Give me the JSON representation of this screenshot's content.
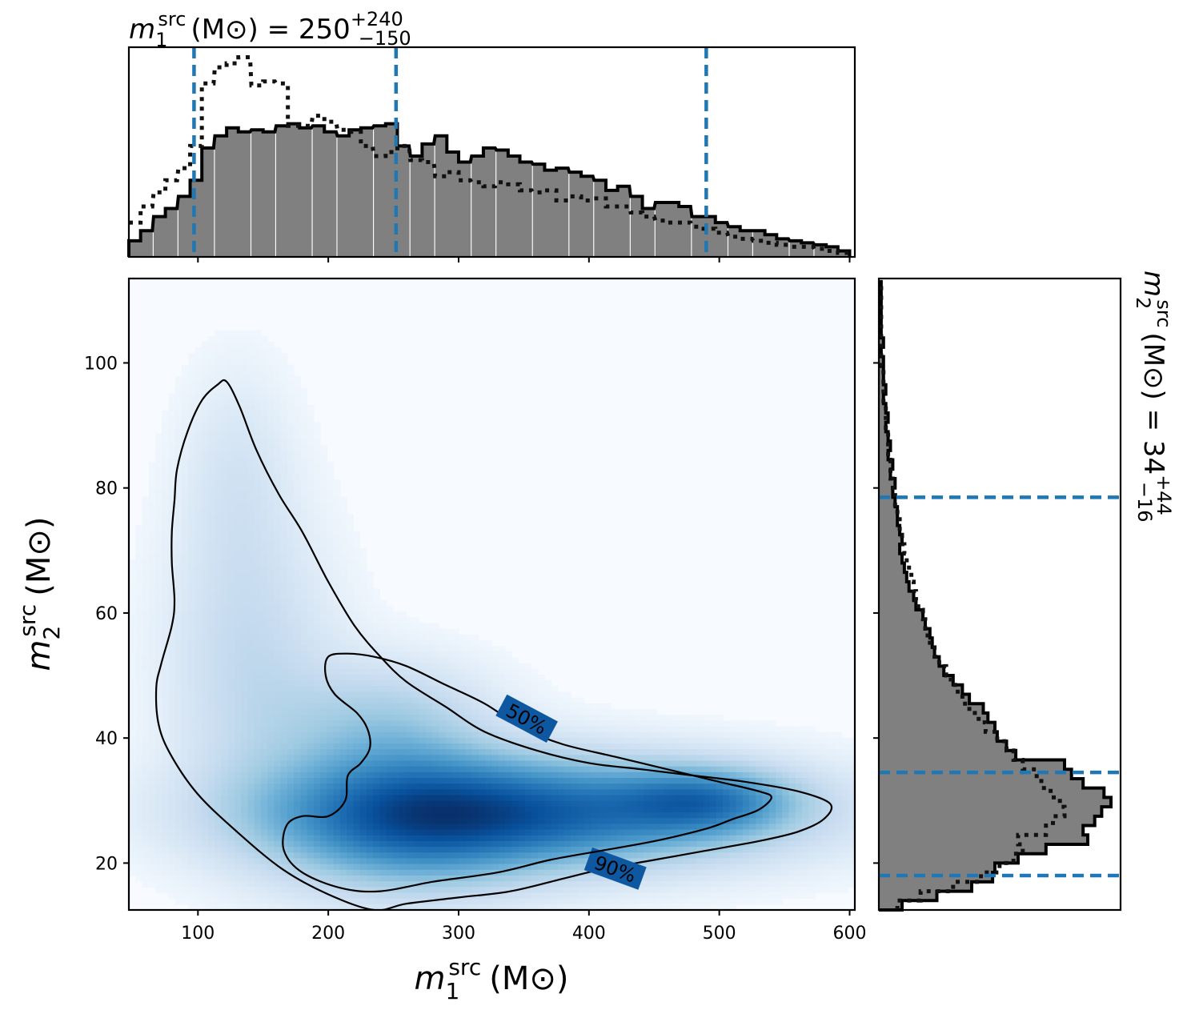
{
  "chart_data": {
    "type": "corner-plot",
    "colors": {
      "histogram_fill": "#808080",
      "dashed_line": "#1f77b4",
      "density_cmap_dark": "#08306b",
      "density_cmap_light": "#f7fbff"
    },
    "top_marginal": {
      "title_symbol": "m",
      "title_sub": "1",
      "title_sup": "src",
      "title_unit": "(M⊙)",
      "title_eq": " = 250",
      "title_upper": "+240",
      "title_lower": "−150",
      "xlim": [
        47,
        604
      ],
      "dashed_lines_x": [
        97,
        252,
        490
      ],
      "bins_left": [
        47,
        56,
        66,
        75,
        85,
        94,
        103,
        113,
        122,
        131,
        141,
        150,
        160,
        169,
        178,
        188,
        197,
        207,
        216,
        225,
        235,
        244,
        253,
        263,
        272,
        282,
        291,
        300,
        310,
        319,
        329,
        338,
        347,
        357,
        366,
        375,
        385,
        394,
        404,
        413,
        422,
        432,
        441,
        451,
        460,
        469,
        479,
        488,
        497,
        507,
        516,
        526,
        535,
        544,
        554,
        563,
        573,
        582,
        591
      ],
      "posterior": [
        0.08,
        0.13,
        0.2,
        0.24,
        0.3,
        0.38,
        0.54,
        0.6,
        0.64,
        0.62,
        0.63,
        0.62,
        0.65,
        0.66,
        0.64,
        0.65,
        0.62,
        0.6,
        0.63,
        0.64,
        0.65,
        0.66,
        0.55,
        0.5,
        0.56,
        0.6,
        0.52,
        0.47,
        0.5,
        0.54,
        0.53,
        0.5,
        0.47,
        0.46,
        0.43,
        0.44,
        0.42,
        0.4,
        0.38,
        0.33,
        0.35,
        0.3,
        0.24,
        0.27,
        0.27,
        0.25,
        0.2,
        0.2,
        0.17,
        0.15,
        0.13,
        0.13,
        0.11,
        0.09,
        0.08,
        0.07,
        0.06,
        0.05,
        0.03
      ],
      "prior": [
        0.17,
        0.25,
        0.32,
        0.38,
        0.44,
        0.55,
        0.86,
        0.94,
        0.96,
        0.99,
        0.85,
        0.87,
        0.86,
        0.65,
        0.65,
        0.7,
        0.67,
        0.63,
        0.62,
        0.55,
        0.5,
        0.52,
        0.55,
        0.48,
        0.47,
        0.4,
        0.42,
        0.38,
        0.37,
        0.35,
        0.37,
        0.36,
        0.33,
        0.32,
        0.33,
        0.28,
        0.3,
        0.28,
        0.29,
        0.25,
        0.25,
        0.22,
        0.2,
        0.18,
        0.17,
        0.17,
        0.15,
        0.14,
        0.12,
        0.1,
        0.09,
        0.08,
        0.07,
        0.06,
        0.05,
        0.05,
        0.04,
        0.03,
        0.02
      ],
      "xticks": [
        100,
        200,
        300,
        400,
        500,
        600
      ]
    },
    "right_marginal": {
      "title_symbol": "m",
      "title_sub": "2",
      "title_sup": "src",
      "title_unit": "(M⊙)",
      "title_eq": " = 34",
      "title_upper": "+44",
      "title_lower": "−16",
      "ylim": [
        12.5,
        113.5
      ],
      "dashed_lines_y": [
        78.5,
        34.5,
        18
      ],
      "bins_low": [
        12.5,
        14,
        15.5,
        17,
        18.5,
        20,
        21.5,
        23,
        24.5,
        26,
        27.5,
        29,
        30.5,
        32,
        33.5,
        35,
        36.5,
        38,
        39.5,
        41,
        42.5,
        44,
        45.5,
        47,
        48.5,
        50,
        51.5,
        53,
        54.5,
        56,
        57.5,
        59,
        60.5,
        62,
        63.5,
        65,
        66.5,
        68,
        69.5,
        71,
        72.5,
        74,
        75.5,
        77,
        78.5,
        80,
        81.5,
        83,
        84.5,
        86,
        87.5,
        89,
        90.5,
        92,
        93.5,
        95,
        96.5,
        98,
        99.5,
        101,
        102.5,
        104,
        105.5,
        107,
        108.5,
        110,
        111.5
      ],
      "posterior": [
        0.1,
        0.25,
        0.4,
        0.49,
        0.5,
        0.6,
        0.72,
        0.9,
        0.88,
        0.93,
        0.96,
        1.0,
        0.97,
        0.88,
        0.83,
        0.8,
        0.59,
        0.55,
        0.51,
        0.5,
        0.47,
        0.45,
        0.39,
        0.36,
        0.32,
        0.28,
        0.26,
        0.24,
        0.23,
        0.22,
        0.2,
        0.19,
        0.16,
        0.15,
        0.13,
        0.12,
        0.11,
        0.1,
        0.09,
        0.1,
        0.09,
        0.08,
        0.08,
        0.07,
        0.06,
        0.07,
        0.05,
        0.06,
        0.04,
        0.05,
        0.04,
        0.03,
        0.04,
        0.03,
        0.02,
        0.03,
        0.02,
        0.02,
        0.02,
        0.01,
        0.02,
        0.01,
        0.01,
        0.01,
        0.01,
        0.01,
        0.01
      ],
      "prior": [
        0.08,
        0.18,
        0.32,
        0.44,
        0.52,
        0.58,
        0.62,
        0.6,
        0.72,
        0.75,
        0.8,
        0.78,
        0.74,
        0.7,
        0.68,
        0.62,
        0.58,
        0.55,
        0.51,
        0.46,
        0.43,
        0.39,
        0.36,
        0.34,
        0.31,
        0.29,
        0.26,
        0.24,
        0.22,
        0.21,
        0.2,
        0.19,
        0.17,
        0.16,
        0.15,
        0.14,
        0.13,
        0.12,
        0.11,
        0.1,
        0.09,
        0.09,
        0.08,
        0.07,
        0.07,
        0.06,
        0.05,
        0.05,
        0.04,
        0.04,
        0.04,
        0.03,
        0.03,
        0.03,
        0.02,
        0.02,
        0.02,
        0.02,
        0.01,
        0.01,
        0.01,
        0.01,
        0.01,
        0.01,
        0.01,
        0.01,
        0.01
      ],
      "yticks": [
        20,
        40,
        60,
        80,
        100
      ]
    },
    "joint": {
      "type": "heatmap",
      "xlim": [
        47,
        604
      ],
      "ylim": [
        12.5,
        113.5
      ],
      "xticks": [
        100,
        200,
        300,
        400,
        500,
        600
      ],
      "yticks": [
        20,
        40,
        60,
        80,
        100
      ],
      "xlabel_symbol": "m",
      "xlabel_sub": "1",
      "xlabel_sup": "src",
      "xlabel_unit": "(M⊙)",
      "ylabel_symbol": "m",
      "ylabel_sub": "2",
      "ylabel_sup": "src",
      "ylabel_unit": "(M⊙)",
      "density_modes": [
        {
          "x": 355,
          "y": 28,
          "sx": 130,
          "sy": 6,
          "w": 1.0
        },
        {
          "x": 490,
          "y": 30,
          "sx": 45,
          "sy": 3.5,
          "w": 0.55
        },
        {
          "x": 260,
          "y": 26,
          "sx": 70,
          "sy": 8,
          "w": 0.55
        },
        {
          "x": 245,
          "y": 42,
          "sx": 55,
          "sy": 7,
          "w": 0.35
        },
        {
          "x": 140,
          "y": 52,
          "sx": 45,
          "sy": 16,
          "w": 0.25
        },
        {
          "x": 130,
          "y": 82,
          "sx": 30,
          "sy": 12,
          "w": 0.14
        }
      ],
      "contours": [
        {
          "label": "90%",
          "label_x": 420,
          "label_y": 19,
          "label_angle": 20,
          "points": [
            [
              122,
              97
            ],
            [
              132,
              93
            ],
            [
              145,
              86
            ],
            [
              162,
              79
            ],
            [
              180,
              73
            ],
            [
              200,
              65
            ],
            [
              220,
              58
            ],
            [
              240,
              53
            ],
            [
              260,
              49
            ],
            [
              290,
              45
            ],
            [
              320,
              41
            ],
            [
              360,
              38
            ],
            [
              400,
              36
            ],
            [
              440,
              35
            ],
            [
              480,
              34
            ],
            [
              520,
              33
            ],
            [
              560,
              31.5
            ],
            [
              585,
              29.5
            ],
            [
              580,
              27
            ],
            [
              560,
              25
            ],
            [
              530,
              23.5
            ],
            [
              490,
              22
            ],
            [
              450,
              20.5
            ],
            [
              410,
              19
            ],
            [
              380,
              17.5
            ],
            [
              340,
              15.5
            ],
            [
              300,
              14.5
            ],
            [
              260,
              13.5
            ],
            [
              235,
              12.5
            ],
            [
              200,
              15
            ],
            [
              165,
              19
            ],
            [
              130,
              25
            ],
            [
              100,
              31
            ],
            [
              80,
              37
            ],
            [
              70,
              42
            ],
            [
              68,
              48
            ],
            [
              72,
              52
            ],
            [
              80,
              58
            ],
            [
              82,
              62
            ],
            [
              80,
              68
            ],
            [
              80,
              73
            ],
            [
              82,
              78
            ],
            [
              84,
              83
            ],
            [
              92,
              89
            ],
            [
              103,
              94
            ],
            [
              115,
              96.5
            ]
          ]
        },
        {
          "label": "50%",
          "label_x": 352,
          "label_y": 43,
          "label_angle": 28,
          "points": [
            [
              200,
              53
            ],
            [
              215,
              53.5
            ],
            [
              235,
              53
            ],
            [
              260,
              51.5
            ],
            [
              290,
              48.5
            ],
            [
              320,
              45.5
            ],
            [
              350,
              41.5
            ],
            [
              380,
              39
            ],
            [
              420,
              37
            ],
            [
              460,
              35
            ],
            [
              500,
              33
            ],
            [
              530,
              31.5
            ],
            [
              540,
              30.5
            ],
            [
              530,
              28.5
            ],
            [
              510,
              27
            ],
            [
              490,
              25.5
            ],
            [
              450,
              23.5
            ],
            [
              410,
              22
            ],
            [
              370,
              20.5
            ],
            [
              330,
              18.5
            ],
            [
              280,
              17
            ],
            [
              240,
              15.5
            ],
            [
              210,
              16
            ],
            [
              180,
              18.5
            ],
            [
              166,
              22
            ],
            [
              168,
              26
            ],
            [
              180,
              27.5
            ],
            [
              200,
              27.5
            ],
            [
              213,
              30
            ],
            [
              215,
              34
            ],
            [
              225,
              36
            ],
            [
              232,
              38.5
            ],
            [
              230,
              41.5
            ],
            [
              222,
              44
            ],
            [
              205,
              47
            ],
            [
              198,
              50
            ]
          ]
        }
      ]
    }
  }
}
